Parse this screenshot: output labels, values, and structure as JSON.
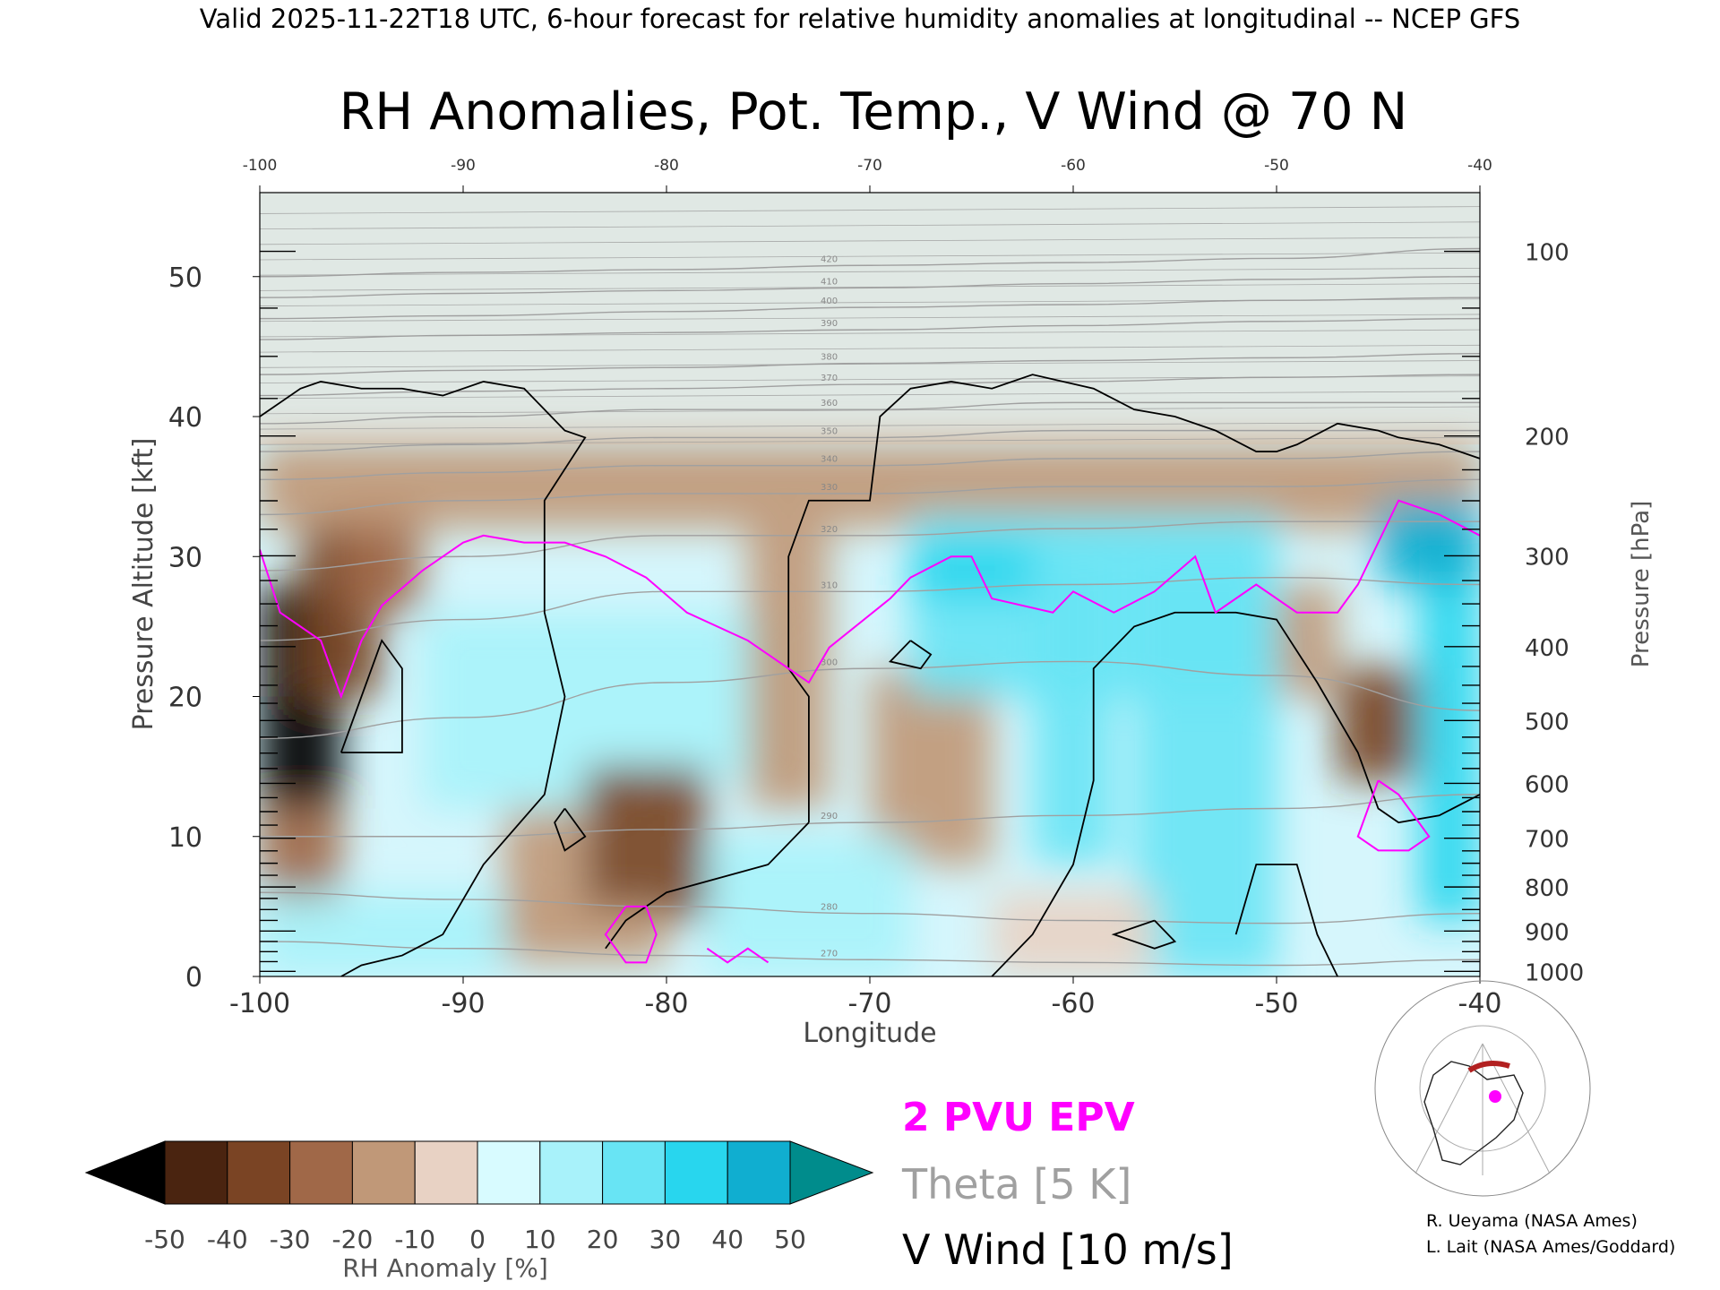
{
  "header": {
    "caption": "Valid 2025-11-22T18 UTC, 6-hour forecast for relative humidity anomalies at longitudinal -- NCEP GFS"
  },
  "chart_data": {
    "type": "heatmap",
    "title": "RH Anomalies, Pot. Temp., V Wind @ 70 N",
    "xlabel": "Longitude",
    "ylabel": "Pressure Altitude [kft]",
    "y2label": "Pressure [hPa]",
    "xlim": [
      -100,
      -40
    ],
    "ylim": [
      0,
      56
    ],
    "x_ticks": [
      "-100",
      "-90",
      "-80",
      "-70",
      "-60",
      "-50",
      "-40"
    ],
    "x_ticks_top": [
      "-100",
      "-90",
      "-80",
      "-70",
      "-60",
      "-50",
      "-40"
    ],
    "y_ticks": [
      "0",
      "10",
      "20",
      "30",
      "40",
      "50"
    ],
    "pressure_ticks": [
      {
        "hpa": 1000,
        "label": "1000"
      },
      {
        "hpa": 900,
        "label": "900"
      },
      {
        "hpa": 800,
        "label": "800"
      },
      {
        "hpa": 700,
        "label": "700"
      },
      {
        "hpa": 600,
        "label": "600"
      },
      {
        "hpa": 500,
        "label": "500"
      },
      {
        "hpa": 400,
        "label": "400"
      },
      {
        "hpa": 300,
        "label": "300"
      },
      {
        "hpa": 200,
        "label": "200"
      },
      {
        "hpa": 100,
        "label": "100"
      }
    ],
    "rh_anomaly_cells": [
      {
        "lon0": -100,
        "lon1": -96,
        "kft0": 12,
        "kft1": 28,
        "val": -55
      },
      {
        "lon0": -98,
        "lon1": -94,
        "kft0": 20,
        "kft1": 33,
        "val": -40
      },
      {
        "lon0": -96,
        "lon1": -92,
        "kft0": 26,
        "kft1": 34,
        "val": -25
      },
      {
        "lon0": -100,
        "lon1": -96,
        "kft0": 4,
        "kft1": 12,
        "val": -30
      },
      {
        "lon0": -100,
        "lon1": -40,
        "kft0": 32,
        "kft1": 38,
        "val": -15
      },
      {
        "lon0": -92,
        "lon1": -82,
        "kft0": 12,
        "kft1": 26,
        "val": 10
      },
      {
        "lon0": -82,
        "lon1": -74,
        "kft0": 14,
        "kft1": 26,
        "val": 10
      },
      {
        "lon0": -88,
        "lon1": -84,
        "kft0": 4,
        "kft1": 12,
        "val": -15
      },
      {
        "lon0": -84,
        "lon1": -78,
        "kft0": 4,
        "kft1": 15,
        "val": -35
      },
      {
        "lon0": -88,
        "lon1": -80,
        "kft0": 1,
        "kft1": 5,
        "val": -20
      },
      {
        "lon0": -100,
        "lon1": -88,
        "kft0": 0,
        "kft1": 6,
        "val": 15
      },
      {
        "lon0": -76,
        "lon1": -72,
        "kft0": 12,
        "kft1": 32,
        "val": -15
      },
      {
        "lon0": -70,
        "lon1": -64,
        "kft0": 8,
        "kft1": 22,
        "val": -15
      },
      {
        "lon0": -78,
        "lon1": -68,
        "kft0": 0,
        "kft1": 10,
        "val": 15
      },
      {
        "lon0": -68,
        "lon1": -50,
        "kft0": 20,
        "kft1": 33,
        "val": 20
      },
      {
        "lon0": -68,
        "lon1": -62,
        "kft0": 27,
        "kft1": 31,
        "val": 35
      },
      {
        "lon0": -62,
        "lon1": -58,
        "kft0": 8,
        "kft1": 30,
        "val": 20
      },
      {
        "lon0": -57,
        "lon1": -50,
        "kft0": 0,
        "kft1": 30,
        "val": 25
      },
      {
        "lon0": -50,
        "lon1": -47,
        "kft0": 20,
        "kft1": 28,
        "val": -20
      },
      {
        "lon0": -47,
        "lon1": -43,
        "kft0": 14,
        "kft1": 22,
        "val": -35
      },
      {
        "lon0": -43,
        "lon1": -40,
        "kft0": 4,
        "kft1": 34,
        "val": 30
      },
      {
        "lon0": -45,
        "lon1": -40,
        "kft0": 28,
        "kft1": 34,
        "val": 40
      },
      {
        "lon0": -64,
        "lon1": -56,
        "kft0": 0,
        "kft1": 6,
        "val": -10
      }
    ],
    "theta_contours": [
      {
        "label": "270",
        "kft": [
          2.5,
          2.0,
          1.5,
          1.2,
          1.0,
          0.8,
          1.2
        ]
      },
      {
        "label": "280",
        "kft": [
          6.0,
          5.5,
          5.0,
          4.5,
          4.0,
          3.8,
          4.5
        ]
      },
      {
        "label": "290",
        "kft": [
          10.0,
          10.0,
          10.5,
          11.0,
          11.5,
          12.0,
          13.0
        ]
      },
      {
        "label": "300",
        "kft": [
          17.0,
          18.5,
          21.0,
          22.0,
          22.5,
          21.5,
          19.0
        ]
      },
      {
        "label": "310",
        "kft": [
          24.0,
          25.5,
          27.5,
          27.5,
          28.0,
          28.5,
          28.0
        ]
      },
      {
        "label": "320",
        "kft": [
          29.0,
          30.0,
          31.5,
          31.5,
          32.0,
          32.5,
          32.5
        ]
      },
      {
        "label": "330",
        "kft": [
          33.0,
          34.0,
          34.5,
          34.5,
          35.0,
          35.0,
          35.5
        ]
      },
      {
        "label": "340",
        "kft": [
          35.5,
          36.0,
          36.5,
          36.5,
          37.0,
          37.0,
          37.5
        ]
      },
      {
        "label": "350",
        "kft": [
          37.5,
          38.0,
          38.5,
          38.5,
          39.0,
          39.0,
          39.0
        ]
      },
      {
        "label": "360",
        "kft": [
          39.5,
          40.0,
          40.5,
          40.5,
          41.0,
          41.0,
          41.0
        ]
      },
      {
        "label": "370",
        "kft": [
          41.5,
          41.8,
          42.0,
          42.3,
          42.5,
          42.8,
          43.0
        ]
      },
      {
        "label": "380",
        "kft": [
          43.0,
          43.3,
          43.5,
          43.8,
          44.0,
          44.2,
          44.5
        ]
      },
      {
        "label": "390",
        "kft": [
          45.5,
          45.8,
          46.0,
          46.2,
          46.5,
          46.8,
          47.0
        ]
      },
      {
        "label": "400",
        "kft": [
          47.0,
          47.2,
          47.5,
          47.8,
          48.0,
          48.3,
          48.5
        ]
      },
      {
        "label": "410",
        "kft": [
          48.5,
          48.8,
          49.0,
          49.2,
          49.5,
          49.8,
          50.0
        ]
      },
      {
        "label": "420",
        "kft": [
          50.0,
          50.3,
          50.5,
          50.8,
          51.0,
          51.3,
          52.0
        ]
      }
    ],
    "theta_lons": [
      -100,
      -90,
      -80,
      -70,
      -60,
      -50,
      -40
    ],
    "epv_2pvu": [
      [
        -100,
        30.5
      ],
      [
        -99,
        26
      ],
      [
        -97,
        24
      ],
      [
        -96,
        20
      ],
      [
        -95,
        24
      ],
      [
        -94,
        26.5
      ],
      [
        -92,
        29
      ],
      [
        -90,
        31
      ],
      [
        -89,
        31.5
      ],
      [
        -87,
        31
      ],
      [
        -85,
        31
      ],
      [
        -83,
        30
      ],
      [
        -81,
        28.5
      ],
      [
        -79,
        26
      ],
      [
        -76,
        24
      ],
      [
        -74,
        22
      ],
      [
        -73,
        21
      ],
      [
        -72,
        23.5
      ],
      [
        -69,
        27
      ],
      [
        -68,
        28.5
      ],
      [
        -66,
        30
      ],
      [
        -65,
        30
      ],
      [
        -64,
        27
      ],
      [
        -61,
        26
      ],
      [
        -60,
        27.5
      ],
      [
        -58,
        26
      ],
      [
        -56,
        27.5
      ],
      [
        -54,
        30
      ],
      [
        -53,
        26
      ],
      [
        -51,
        28
      ],
      [
        -49,
        26
      ],
      [
        -47,
        26
      ],
      [
        -46,
        28
      ],
      [
        -45,
        31
      ],
      [
        -44,
        34
      ],
      [
        -43,
        33.5
      ],
      [
        -42,
        33
      ],
      [
        -40,
        31.5
      ]
    ],
    "epv_blobs": [
      [
        [
          -45,
          14
        ],
        [
          -46,
          10
        ],
        [
          -45,
          9
        ],
        [
          -43.5,
          9
        ],
        [
          -42.5,
          10
        ],
        [
          -44,
          13
        ],
        [
          -45,
          14
        ]
      ],
      [
        [
          -82,
          5
        ],
        [
          -83,
          3
        ],
        [
          -82,
          1
        ],
        [
          -81,
          1
        ],
        [
          -80.5,
          3
        ],
        [
          -81,
          5
        ],
        [
          -82,
          5
        ]
      ],
      [
        [
          -78,
          2
        ],
        [
          -77,
          1
        ],
        [
          -76,
          2
        ],
        [
          -75,
          1
        ]
      ]
    ],
    "vwind_zero": [
      [
        [
          -100,
          40
        ],
        [
          -98,
          42
        ],
        [
          -97,
          42.5
        ],
        [
          -95,
          42
        ],
        [
          -93,
          42
        ],
        [
          -91,
          41.5
        ],
        [
          -89,
          42.5
        ],
        [
          -87,
          42
        ],
        [
          -85,
          39
        ],
        [
          -84,
          38.5
        ],
        [
          -86,
          34
        ],
        [
          -86,
          26
        ],
        [
          -85,
          20
        ],
        [
          -86,
          13
        ],
        [
          -89,
          8
        ],
        [
          -91,
          3
        ],
        [
          -93,
          1.5
        ],
        [
          -95,
          0.8
        ],
        [
          -96,
          0
        ]
      ],
      [
        [
          -74,
          22
        ],
        [
          -74,
          30
        ],
        [
          -73,
          34
        ],
        [
          -70,
          34
        ],
        [
          -69.5,
          40
        ],
        [
          -68,
          42
        ],
        [
          -66,
          42.5
        ],
        [
          -64,
          42
        ],
        [
          -62,
          43
        ],
        [
          -59,
          42
        ],
        [
          -57,
          40.5
        ],
        [
          -55,
          40
        ],
        [
          -53,
          39
        ],
        [
          -51,
          37.5
        ],
        [
          -50,
          37.5
        ],
        [
          -49,
          38
        ],
        [
          -47,
          39.5
        ],
        [
          -45,
          39
        ],
        [
          -44,
          38.5
        ],
        [
          -42,
          38
        ],
        [
          -40,
          37
        ]
      ],
      [
        [
          -73,
          11
        ],
        [
          -75,
          8
        ],
        [
          -80,
          6
        ],
        [
          -82,
          4
        ],
        [
          -83,
          2
        ]
      ],
      [
        [
          -73,
          11
        ],
        [
          -73,
          20
        ],
        [
          -74,
          22
        ]
      ],
      [
        [
          -64,
          0
        ],
        [
          -62,
          3
        ],
        [
          -60,
          8
        ],
        [
          -59,
          14
        ],
        [
          -59,
          22
        ],
        [
          -57,
          25
        ],
        [
          -55,
          26
        ],
        [
          -52,
          26
        ],
        [
          -50,
          25.5
        ],
        [
          -48,
          21
        ],
        [
          -46,
          16
        ],
        [
          -45,
          12
        ],
        [
          -44,
          11
        ],
        [
          -42,
          11.5
        ],
        [
          -40,
          13
        ]
      ],
      [
        [
          -96,
          16
        ],
        [
          -94,
          24
        ],
        [
          -93,
          22
        ],
        [
          -93,
          16
        ],
        [
          -96,
          16
        ]
      ],
      [
        [
          -85,
          12
        ],
        [
          -85.5,
          11
        ],
        [
          -85,
          9
        ],
        [
          -84,
          10
        ],
        [
          -85,
          12
        ]
      ],
      [
        [
          -68,
          24
        ],
        [
          -67,
          23
        ],
        [
          -67.5,
          22
        ],
        [
          -69,
          22.5
        ],
        [
          -68,
          24
        ]
      ],
      [
        [
          -56,
          4
        ],
        [
          -58,
          3
        ],
        [
          -56,
          2
        ],
        [
          -55,
          2.5
        ],
        [
          -56,
          4
        ]
      ],
      [
        [
          -52,
          3
        ],
        [
          -51,
          8
        ],
        [
          -49,
          8
        ],
        [
          -48,
          3
        ],
        [
          -47,
          0
        ]
      ]
    ],
    "colorbar": {
      "label": "RH Anomaly [%]",
      "ticks": [
        "-50",
        "-40",
        "-30",
        "-20",
        "-10",
        "0",
        "10",
        "20",
        "30",
        "40",
        "50"
      ],
      "colors": [
        "#000000",
        "#4a2410",
        "#7a4424",
        "#a06848",
        "#c09878",
        "#e8d2c4",
        "#d8fbff",
        "#a8f2fa",
        "#68e4f4",
        "#28d6ee",
        "#10aed0",
        "#0a6f88",
        "#008c8c"
      ]
    }
  },
  "legend": {
    "epv": "2 PVU EPV",
    "theta": "Theta [5 K]",
    "vwind": "V Wind [10 m/s]"
  },
  "credits": {
    "line1": "R. Ueyama (NASA Ames)",
    "line2": "L. Lait (NASA Ames/Goddard)"
  },
  "colors": {
    "epv": "#ff00ff",
    "theta": "#a0a0a0",
    "vwind": "#000000",
    "background_upper": "#e0e8e4"
  }
}
